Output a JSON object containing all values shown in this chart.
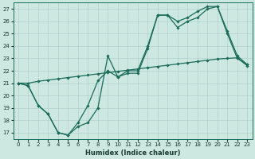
{
  "xlabel": "Humidex (Indice chaleur)",
  "bg_color": "#cce8e0",
  "grid_color": "#aacccc",
  "line_color": "#1a6b5a",
  "xlim": [
    -0.5,
    23.5
  ],
  "ylim": [
    16.5,
    27.5
  ],
  "xticks": [
    0,
    1,
    2,
    3,
    4,
    5,
    6,
    7,
    8,
    9,
    10,
    11,
    12,
    13,
    14,
    15,
    16,
    17,
    18,
    19,
    20,
    21,
    22,
    23
  ],
  "yticks": [
    17,
    18,
    19,
    20,
    21,
    22,
    23,
    24,
    25,
    26,
    27
  ],
  "line1_x": [
    0,
    1,
    2,
    3,
    4,
    5,
    6,
    7,
    8,
    9,
    10,
    11,
    12,
    13,
    14,
    15,
    16,
    17,
    18,
    19,
    20,
    21,
    22,
    23
  ],
  "line1_y": [
    21.0,
    20.8,
    19.2,
    18.5,
    17.0,
    16.8,
    17.5,
    17.8,
    19.0,
    23.2,
    21.5,
    21.8,
    21.8,
    23.8,
    26.5,
    26.5,
    25.5,
    26.0,
    26.3,
    27.0,
    27.2,
    25.0,
    23.0,
    22.5
  ],
  "line2_x": [
    0,
    1,
    2,
    3,
    4,
    5,
    6,
    7,
    8,
    9,
    10,
    11,
    12,
    13,
    14,
    15,
    16,
    17,
    18,
    19,
    20,
    21,
    22,
    23
  ],
  "line2_y": [
    21.0,
    20.8,
    19.2,
    18.5,
    17.0,
    16.8,
    17.8,
    19.2,
    21.2,
    22.0,
    21.5,
    22.0,
    22.0,
    24.0,
    26.5,
    26.5,
    26.0,
    26.3,
    26.8,
    27.2,
    27.2,
    25.2,
    23.2,
    22.5
  ],
  "line3_x": [
    0,
    1,
    2,
    3,
    4,
    5,
    6,
    7,
    8,
    9,
    10,
    11,
    12,
    13,
    14,
    15,
    16,
    17,
    18,
    19,
    20,
    21,
    22,
    23
  ],
  "line3_y": [
    21.0,
    21.0,
    21.15,
    21.25,
    21.35,
    21.45,
    21.55,
    21.65,
    21.75,
    21.85,
    21.95,
    22.05,
    22.15,
    22.25,
    22.35,
    22.45,
    22.55,
    22.65,
    22.75,
    22.85,
    22.95,
    23.0,
    23.05,
    22.4
  ]
}
